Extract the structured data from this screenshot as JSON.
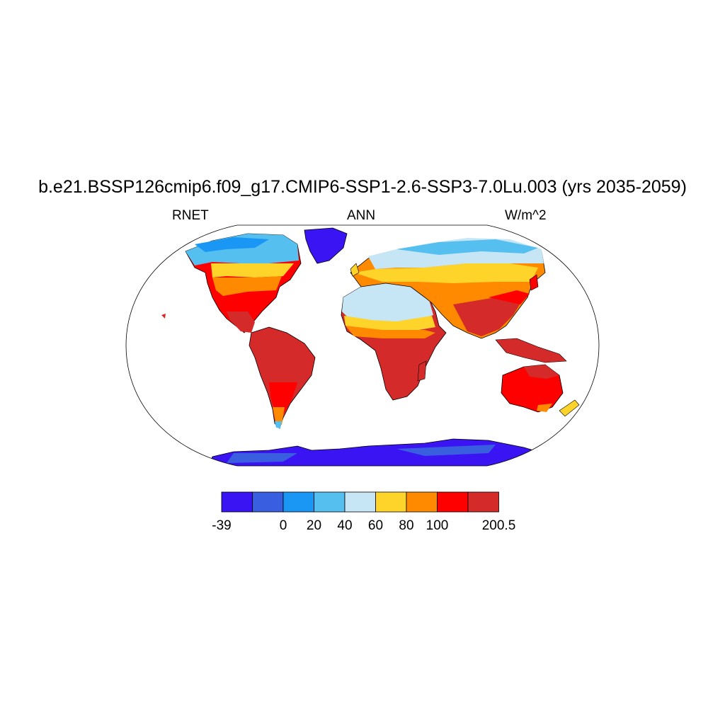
{
  "title": "b.e21.BSSP126cmip6.f09_g17.CMIP6-SSP1-2.6-SSP3-7.0Lu.003 (yrs 2035-2059)",
  "left_label": "RNET",
  "center_label": "ANN",
  "right_label": "W/m^2",
  "map": {
    "projection": "robinson",
    "field": "annual mean net radiation over land",
    "colors": {
      "land_neg": "#3a1ef2",
      "land_0": "#3a5ee0",
      "land_20": "#1a96f5",
      "land_40": "#55bff0",
      "land_60": "#c6e6f6",
      "land_80": "#ffd42a",
      "land_100": "#ff8a00",
      "land_hot": "#ff0000",
      "land_max": "#d42a2a",
      "ocean": "#ffffff"
    }
  },
  "colorbar": {
    "colors": [
      "#3a14f2",
      "#3a5ee0",
      "#1a96f5",
      "#55bff0",
      "#c6e6f6",
      "#ffd42a",
      "#ff8a00",
      "#ff0000",
      "#d42a2a"
    ],
    "labels": [
      "-39",
      "",
      "0",
      "20",
      "40",
      "60",
      "80",
      "100",
      "",
      "200.5"
    ]
  }
}
